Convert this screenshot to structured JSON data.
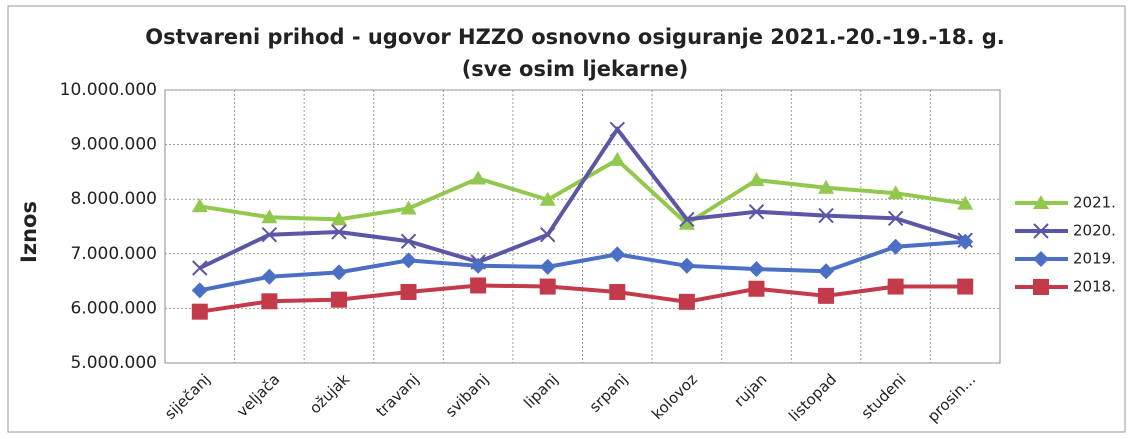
{
  "chart_data": {
    "type": "line",
    "title": "Ostvareni prihod - ugovor HZZO osnovno osiguranje 2021.-20.-19.-18. g.",
    "subtitle": "(sve osim ljekarne)",
    "y_label": "Iznos",
    "categories": [
      "siječanj",
      "veljača",
      "ožujak",
      "travanj",
      "svibanj",
      "lipanj",
      "srpanj",
      "kolovoz",
      "rujan",
      "listopad",
      "studeni",
      "prosin..."
    ],
    "series": [
      {
        "name": "2021.",
        "color": "#92c84e",
        "marker": "triangle",
        "values": [
          7870000,
          7670000,
          7630000,
          7830000,
          8380000,
          7990000,
          8720000,
          7550000,
          8350000,
          8210000,
          8110000,
          7920000
        ]
      },
      {
        "name": "2020.",
        "color": "#5b57a6",
        "marker": "x",
        "values": [
          6740000,
          7350000,
          7400000,
          7230000,
          6850000,
          7350000,
          9280000,
          7630000,
          7770000,
          7700000,
          7650000,
          7250000
        ]
      },
      {
        "name": "2019.",
        "color": "#4a6fc4",
        "marker": "diamond",
        "values": [
          6330000,
          6580000,
          6660000,
          6880000,
          6780000,
          6760000,
          6990000,
          6780000,
          6720000,
          6680000,
          7130000,
          7220000
        ]
      },
      {
        "name": "2018.",
        "color": "#c33a4b",
        "marker": "square",
        "values": [
          5940000,
          6130000,
          6160000,
          6300000,
          6420000,
          6400000,
          6300000,
          6120000,
          6360000,
          6230000,
          6400000,
          6400000
        ]
      }
    ],
    "ylim": [
      5000000,
      10000000
    ],
    "yticks": [
      {
        "value": 5000000,
        "label": "5.000.000"
      },
      {
        "value": 6000000,
        "label": "6.000.000"
      },
      {
        "value": 7000000,
        "label": "7.000.000"
      },
      {
        "value": 8000000,
        "label": "8.000.000"
      },
      {
        "value": 9000000,
        "label": "9.000.000"
      },
      {
        "value": 10000000,
        "label": "10.000.000"
      }
    ],
    "grid": true,
    "legend": "right"
  }
}
